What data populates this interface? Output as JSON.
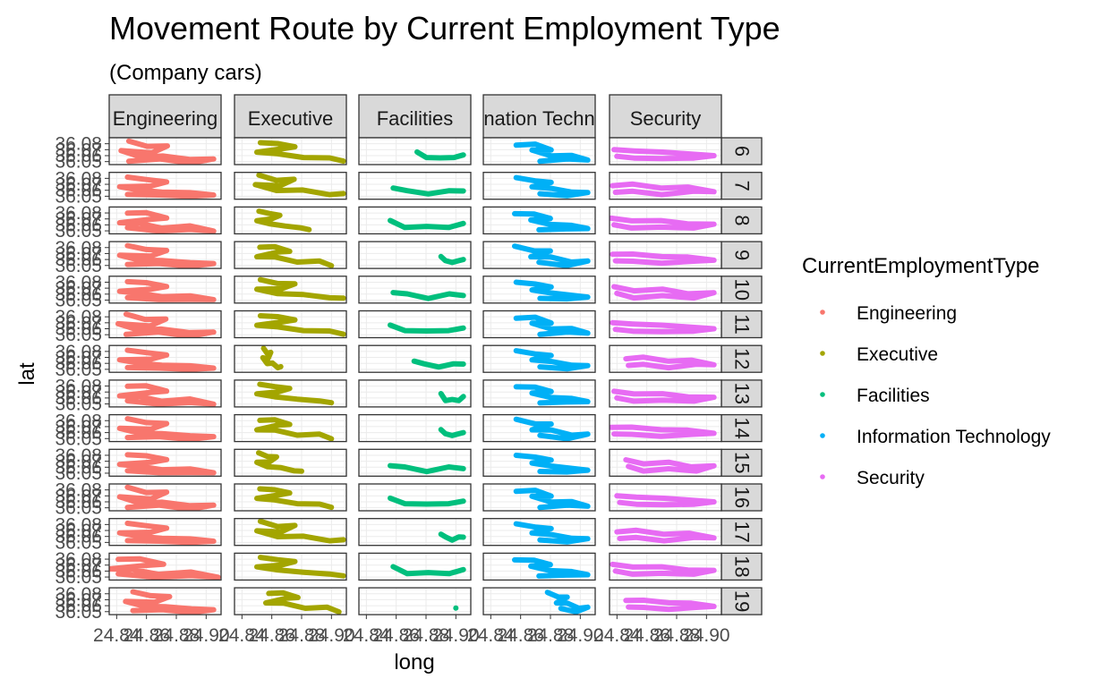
{
  "chart_data": {
    "type": "scatter",
    "title": "Movement Route by Current Employment Type",
    "subtitle": "(Company cars)",
    "xlabel": "long",
    "ylabel": "lat",
    "facet_cols": [
      "Engineering",
      "Executive",
      "Facilities",
      "Information Technology",
      "Security"
    ],
    "facet_col_strip_labels": [
      "Engineering",
      "Executive",
      "Facilities",
      "nation Techn",
      "Security"
    ],
    "facet_rows": [
      "6",
      "7",
      "8",
      "9",
      "10",
      "11",
      "12",
      "13",
      "14",
      "15",
      "16",
      "17",
      "18",
      "19"
    ],
    "x_ticks": [
      "24.84",
      "24.86",
      "24.88",
      "24.90"
    ],
    "y_ticks": [
      "36.05",
      "36.06",
      "36.07",
      "36.08"
    ],
    "xlim": [
      24.835,
      24.91
    ],
    "ylim": [
      36.045,
      36.09
    ],
    "legend": {
      "title": "CurrentEmploymentType",
      "position": "right",
      "items": [
        "Engineering",
        "Executive",
        "Facilities",
        "Information Technology",
        "Security"
      ]
    },
    "colors": {
      "Engineering": "#F8766D",
      "Executive": "#A3A500",
      "Facilities": "#00BF7D",
      "Information Technology": "#00B0F6",
      "Security": "#E76BF3"
    },
    "grid": true,
    "theme": "bw",
    "series_note": "route tracks approximated per facet",
    "series": [
      {
        "name": "Engineering",
        "route": [
          [
            24.85,
            36.082
          ],
          [
            24.862,
            36.078
          ],
          [
            24.875,
            36.074
          ],
          [
            24.865,
            36.067
          ],
          [
            24.845,
            36.066
          ],
          [
            24.858,
            36.06
          ],
          [
            24.872,
            36.057
          ],
          [
            24.89,
            36.056
          ],
          [
            24.905,
            36.052
          ],
          [
            24.89,
            36.05
          ],
          [
            24.87,
            36.052
          ],
          [
            24.85,
            36.053
          ]
        ]
      },
      {
        "name": "Executive",
        "route": [
          [
            24.86,
            36.083
          ],
          [
            24.87,
            36.079
          ],
          [
            24.88,
            36.076
          ],
          [
            24.872,
            36.07
          ],
          [
            24.858,
            36.067
          ],
          [
            24.87,
            36.062
          ],
          [
            24.885,
            36.058
          ],
          [
            24.9,
            36.055
          ],
          [
            24.908,
            36.052
          ]
        ]
      },
      {
        "name": "Facilities",
        "route": [
          [
            24.855,
            36.065
          ],
          [
            24.865,
            36.058
          ],
          [
            24.88,
            36.055
          ],
          [
            24.895,
            36.058
          ],
          [
            24.905,
            36.06
          ]
        ]
      },
      {
        "name": "Information Technology",
        "route": [
          [
            24.86,
            36.08
          ],
          [
            24.872,
            36.077
          ],
          [
            24.882,
            36.072
          ],
          [
            24.87,
            36.067
          ],
          [
            24.882,
            36.062
          ],
          [
            24.895,
            36.058
          ],
          [
            24.905,
            36.055
          ],
          [
            24.892,
            36.052
          ],
          [
            24.875,
            36.053
          ]
        ]
      },
      {
        "name": "Security",
        "route": [
          [
            24.836,
            36.07
          ],
          [
            24.85,
            36.068
          ],
          [
            24.87,
            36.066
          ],
          [
            24.888,
            36.063
          ],
          [
            24.906,
            36.06
          ],
          [
            24.892,
            36.056
          ],
          [
            24.87,
            36.055
          ],
          [
            24.85,
            36.056
          ],
          [
            24.838,
            36.059
          ]
        ]
      }
    ],
    "row_spans": {
      "Engineering": [
        [
          24.843,
          24.905
        ],
        [
          24.842,
          24.905
        ],
        [
          24.842,
          24.905
        ],
        [
          24.842,
          24.905
        ],
        [
          24.842,
          24.905
        ],
        [
          24.841,
          24.905
        ],
        [
          24.842,
          24.905
        ],
        [
          24.842,
          24.905
        ],
        [
          24.842,
          24.905
        ],
        [
          24.842,
          24.905
        ],
        [
          24.842,
          24.905
        ],
        [
          24.842,
          24.905
        ],
        [
          24.835,
          24.908
        ],
        [
          24.846,
          24.905
        ]
      ],
      "Executive": [
        [
          24.85,
          24.908
        ],
        [
          24.849,
          24.908
        ],
        [
          24.85,
          24.885
        ],
        [
          24.85,
          24.9
        ],
        [
          24.85,
          24.908
        ],
        [
          24.85,
          24.908
        ],
        [
          24.854,
          24.866
        ],
        [
          24.85,
          24.9
        ],
        [
          24.85,
          24.9
        ],
        [
          24.85,
          24.88
        ],
        [
          24.85,
          24.9
        ],
        [
          24.85,
          24.908
        ],
        [
          24.85,
          24.908
        ],
        [
          24.856,
          24.905
        ]
      ],
      "Facilities": [
        [
          24.874,
          24.905
        ],
        [
          24.858,
          24.905
        ],
        [
          24.856,
          24.905
        ],
        [
          24.89,
          24.905
        ],
        [
          24.858,
          24.905
        ],
        [
          24.856,
          24.905
        ],
        [
          24.872,
          24.905
        ],
        [
          24.89,
          24.905
        ],
        [
          24.89,
          24.905
        ],
        [
          24.856,
          24.905
        ],
        [
          24.856,
          24.905
        ],
        [
          24.89,
          24.905
        ],
        [
          24.858,
          24.905
        ],
        [
          24.9,
          24.901
        ]
      ],
      "Information Technology": [
        [
          24.857,
          24.905
        ],
        [
          24.857,
          24.905
        ],
        [
          24.856,
          24.905
        ],
        [
          24.856,
          24.905
        ],
        [
          24.857,
          24.905
        ],
        [
          24.857,
          24.905
        ],
        [
          24.857,
          24.905
        ],
        [
          24.857,
          24.905
        ],
        [
          24.857,
          24.905
        ],
        [
          24.857,
          24.905
        ],
        [
          24.857,
          24.905
        ],
        [
          24.857,
          24.905
        ],
        [
          24.856,
          24.905
        ],
        [
          24.878,
          24.905
        ]
      ],
      "Security": [
        [
          24.838,
          24.905
        ],
        [
          24.837,
          24.905
        ],
        [
          24.836,
          24.905
        ],
        [
          24.837,
          24.905
        ],
        [
          24.838,
          24.905
        ],
        [
          24.837,
          24.905
        ],
        [
          24.846,
          24.905
        ],
        [
          24.838,
          24.905
        ],
        [
          24.836,
          24.905
        ],
        [
          24.846,
          24.905
        ],
        [
          24.84,
          24.905
        ],
        [
          24.84,
          24.905
        ],
        [
          24.837,
          24.905
        ],
        [
          24.846,
          24.905
        ]
      ]
    }
  }
}
